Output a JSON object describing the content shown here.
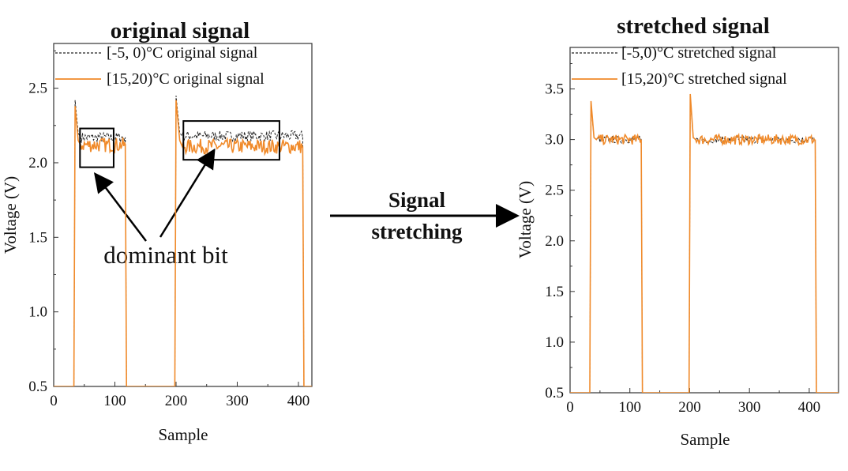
{
  "arrow_label": {
    "line1": "Signal",
    "line2": "stretching"
  },
  "annotation": {
    "text": "dominant bit"
  },
  "colors": {
    "dashed": "#222222",
    "solid": "#f08a2a"
  },
  "chart_data": [
    {
      "type": "line",
      "title": "original signal",
      "xlabel": "Sample",
      "ylabel": "Voltage (V)",
      "xlim": [
        0,
        422
      ],
      "ylim": [
        0.5,
        2.8
      ],
      "xticks": [
        0,
        100,
        200,
        300,
        400
      ],
      "xtick_labels": [
        "0",
        "100",
        "200",
        "300",
        "400"
      ],
      "yticks": [
        0.5,
        1.0,
        1.5,
        2.0,
        2.5
      ],
      "ytick_labels": [
        "0.5",
        "1.0",
        "1.5",
        "2.0",
        "2.5"
      ],
      "legend": "top-right",
      "grid": false,
      "series": [
        {
          "name": "[-5, 0)°C original signal",
          "style": "dashed",
          "x": [
            0,
            33,
            35,
            40,
            44,
            117,
            119,
            198,
            200,
            206,
            210,
            407,
            409,
            422
          ],
          "y": [
            0.5,
            0.5,
            2.42,
            2.2,
            2.17,
            2.17,
            0.5,
            0.5,
            2.45,
            2.2,
            2.18,
            2.18,
            0.5,
            0.5
          ]
        },
        {
          "name": "[15,20)°C original signal",
          "style": "solid",
          "x": [
            0,
            33,
            35,
            40,
            44,
            117,
            119,
            198,
            200,
            206,
            210,
            407,
            409,
            422
          ],
          "y": [
            0.5,
            0.5,
            2.38,
            2.15,
            2.12,
            2.12,
            0.5,
            0.5,
            2.42,
            2.15,
            2.11,
            2.11,
            0.5,
            0.5
          ]
        }
      ],
      "highlight_boxes": [
        {
          "x": [
            43,
            98
          ],
          "y": [
            1.97,
            2.23
          ]
        },
        {
          "x": [
            212,
            369
          ],
          "y": [
            2.02,
            2.28
          ]
        }
      ]
    },
    {
      "type": "line",
      "title": "stretched signal",
      "xlabel": "Sample",
      "ylabel": "Voltage (V)",
      "xlim": [
        0,
        449
      ],
      "ylim": [
        0.5,
        3.91
      ],
      "xticks": [
        0,
        100,
        200,
        300,
        400
      ],
      "xtick_labels": [
        "0",
        "100",
        "200",
        "300",
        "400"
      ],
      "yticks": [
        0.5,
        1.0,
        1.5,
        2.0,
        2.5,
        3.0,
        3.5
      ],
      "ytick_labels": [
        "0.5",
        "1.0",
        "1.5",
        "2.0",
        "2.5",
        "3.0",
        "3.5"
      ],
      "legend": "top-right",
      "grid": false,
      "series": [
        {
          "name": "[-5,0)°C stretched signal",
          "style": "dashed",
          "x": [
            0,
            33,
            35,
            40,
            44,
            119,
            121,
            199,
            201,
            206,
            210,
            410,
            412,
            449
          ],
          "y": [
            0.5,
            0.5,
            3.35,
            3.02,
            3.0,
            3.0,
            0.5,
            0.5,
            3.42,
            3.02,
            3.0,
            3.0,
            0.5,
            0.5
          ]
        },
        {
          "name": "[15,20)°C stretched signal",
          "style": "solid",
          "x": [
            0,
            33,
            35,
            40,
            44,
            119,
            121,
            199,
            201,
            206,
            210,
            410,
            412,
            449
          ],
          "y": [
            0.5,
            0.5,
            3.38,
            3.02,
            3.0,
            3.0,
            0.5,
            0.5,
            3.45,
            3.02,
            3.0,
            3.0,
            0.5,
            0.5
          ]
        }
      ]
    }
  ]
}
